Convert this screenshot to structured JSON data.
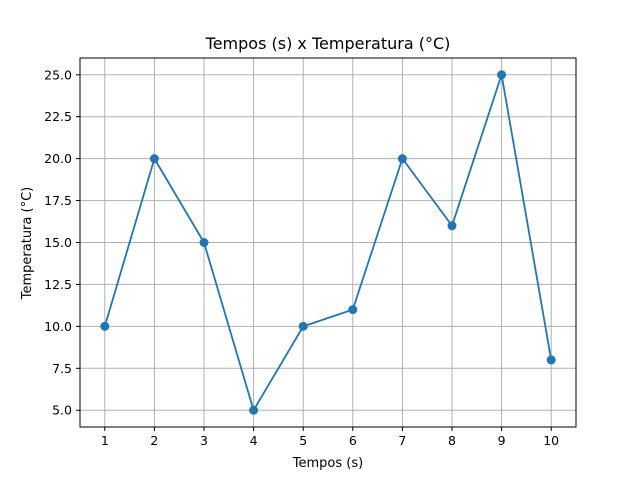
{
  "chart_data": {
    "type": "line",
    "title": "Tempos (s) x Temperatura (°C)",
    "xlabel": "Tempos (s)",
    "ylabel": "Temperatura (°C)",
    "x": [
      1,
      2,
      3,
      4,
      5,
      6,
      7,
      8,
      9,
      10
    ],
    "series": [
      {
        "values": [
          10,
          20,
          15,
          5,
          10,
          11,
          20,
          16,
          25,
          8
        ],
        "color": "#1f77b4",
        "marker": "circle"
      }
    ],
    "xlim": [
      0.5,
      10.5
    ],
    "ylim": [
      4.0,
      26.0
    ],
    "xticks": [
      1,
      2,
      3,
      4,
      5,
      6,
      7,
      8,
      9,
      10
    ],
    "yticks": [
      5.0,
      7.5,
      10.0,
      12.5,
      15.0,
      17.5,
      20.0,
      22.5,
      25.0
    ],
    "ytick_labels": [
      "5.0",
      "7.5",
      "10.0",
      "12.5",
      "15.0",
      "17.5",
      "20.0",
      "22.5",
      "25.0"
    ],
    "grid": true,
    "legend": false
  }
}
